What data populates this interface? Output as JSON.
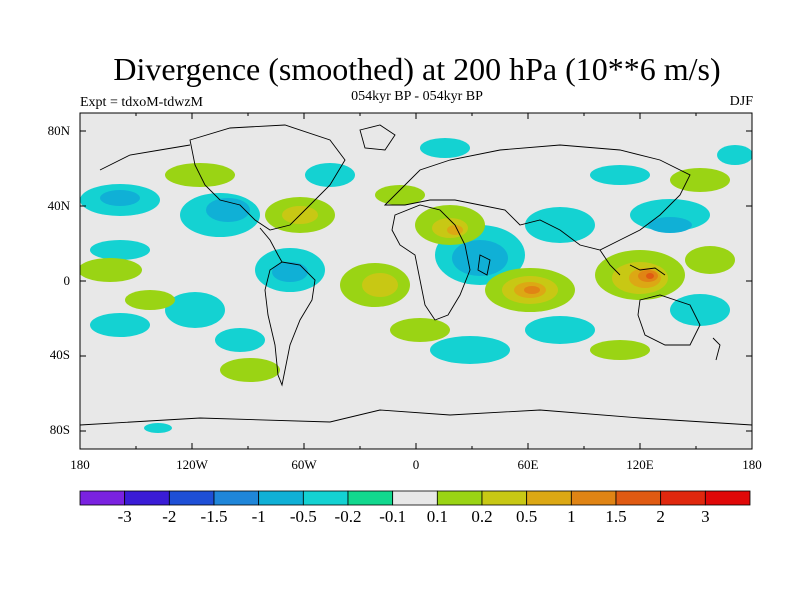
{
  "title": "Divergence (smoothed) at 200 hPa (10**6 m/s)",
  "subtitle": "054kyr BP - 054kyr BP",
  "experiment_label": "Expt = tdxoM-tdwzM",
  "season_label": "DJF",
  "lat_ticks": [
    "80N",
    "40N",
    "0",
    "40S",
    "80S"
  ],
  "lon_ticks": [
    "180",
    "120W",
    "60W",
    "0",
    "60E",
    "120E",
    "180"
  ],
  "colorbar": {
    "labels": [
      "-3",
      "-2",
      "-1.5",
      "-1",
      "-0.5",
      "-0.2",
      "-0.1",
      "0.1",
      "0.2",
      "0.5",
      "1",
      "1.5",
      "2",
      "3"
    ],
    "colors": [
      "#7a22e0",
      "#3a1cd6",
      "#1e4fd6",
      "#1f86d9",
      "#10b0d6",
      "#14d2d2",
      "#12d88e",
      "#e8e8e8",
      "#9ad414",
      "#c8c814",
      "#dca814",
      "#e08414",
      "#e05a12",
      "#e0280e",
      "#e00808"
    ]
  },
  "map_data": {
    "background_color": "#e8e8e8",
    "coastline_color": "#000000"
  }
}
